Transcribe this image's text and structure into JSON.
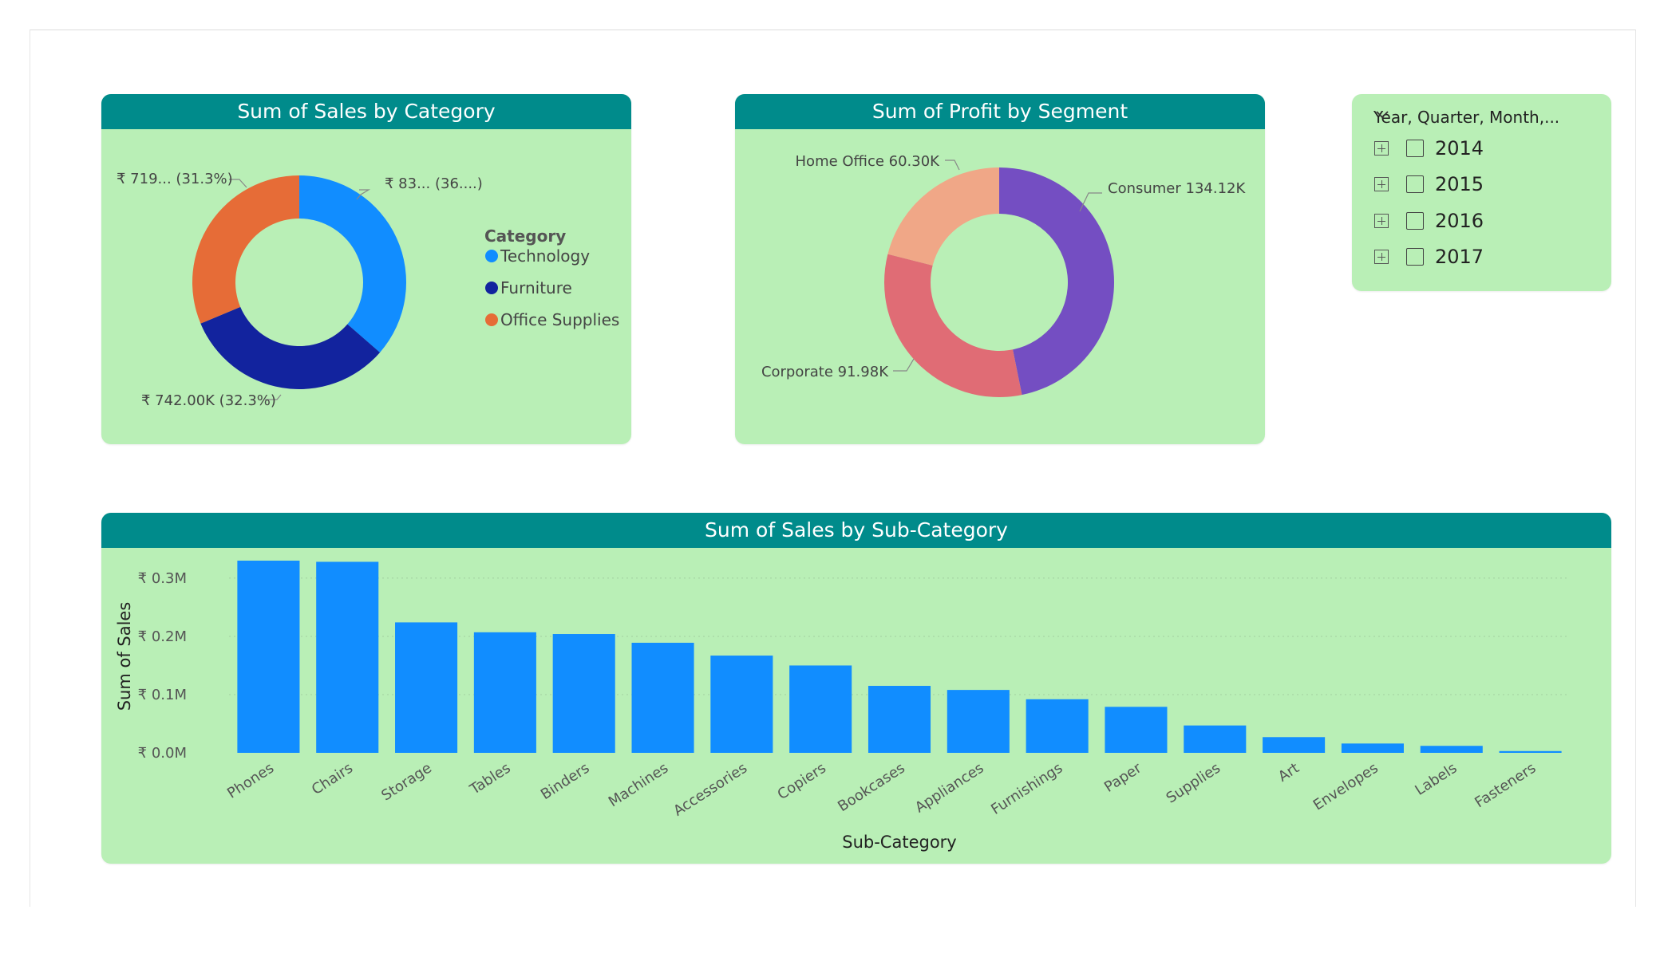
{
  "colors": {
    "card_bg": "#b9efb6",
    "title_bar": "#008b8b",
    "bar": "#118dff"
  },
  "slicer": {
    "title": "Year, Quarter, Month,...",
    "chevron_icon": "chevron-down-icon",
    "expand_icon": "plus-square-icon",
    "items": [
      {
        "label": "2014",
        "checked": false
      },
      {
        "label": "2015",
        "checked": false
      },
      {
        "label": "2016",
        "checked": false
      },
      {
        "label": "2017",
        "checked": false
      }
    ]
  },
  "chart_data": [
    {
      "type": "pie",
      "variant": "donut",
      "title": "Sum of Sales by Category",
      "legend_title": "Category",
      "legend_position": "right",
      "series": [
        {
          "name": "Technology",
          "percent": 36.4,
          "label": "₹ 83... (36....)",
          "color": "#118dff"
        },
        {
          "name": "Furniture",
          "percent": 32.3,
          "value_label": "742.00K",
          "label": "₹ 742.00K (32.3%)",
          "color": "#12239e"
        },
        {
          "name": "Office Supplies",
          "percent": 31.3,
          "label": "₹ 719... (31.3%)",
          "color": "#e66c37"
        }
      ]
    },
    {
      "type": "pie",
      "variant": "donut",
      "title": "Sum of Profit by Segment",
      "series": [
        {
          "name": "Consumer",
          "value": 134.12,
          "label": "Consumer 134.12K",
          "color": "#744ec2"
        },
        {
          "name": "Corporate",
          "value": 91.98,
          "label": "Corporate 91.98K",
          "color": "#e06c75"
        },
        {
          "name": "Home Office",
          "value": 60.3,
          "label": "Home Office 60.30K",
          "color": "#f0a787"
        }
      ]
    },
    {
      "type": "bar",
      "title": "Sum of Sales by Sub-Category",
      "xlabel": "Sub-Category",
      "ylabel": "Sum of Sales",
      "ylim": [
        0,
        0.33
      ],
      "yticks": [
        {
          "value": 0.0,
          "label": "₹ 0.0M"
        },
        {
          "value": 0.1,
          "label": "₹ 0.1M"
        },
        {
          "value": 0.2,
          "label": "₹ 0.2M"
        },
        {
          "value": 0.3,
          "label": "₹ 0.3M"
        }
      ],
      "categories": [
        "Phones",
        "Chairs",
        "Storage",
        "Tables",
        "Binders",
        "Machines",
        "Accessories",
        "Copiers",
        "Bookcases",
        "Appliances",
        "Furnishings",
        "Paper",
        "Supplies",
        "Art",
        "Envelopes",
        "Labels",
        "Fasteners"
      ],
      "values": [
        0.33,
        0.328,
        0.224,
        0.207,
        0.204,
        0.189,
        0.167,
        0.15,
        0.115,
        0.108,
        0.092,
        0.079,
        0.047,
        0.027,
        0.016,
        0.012,
        0.003
      ]
    }
  ]
}
